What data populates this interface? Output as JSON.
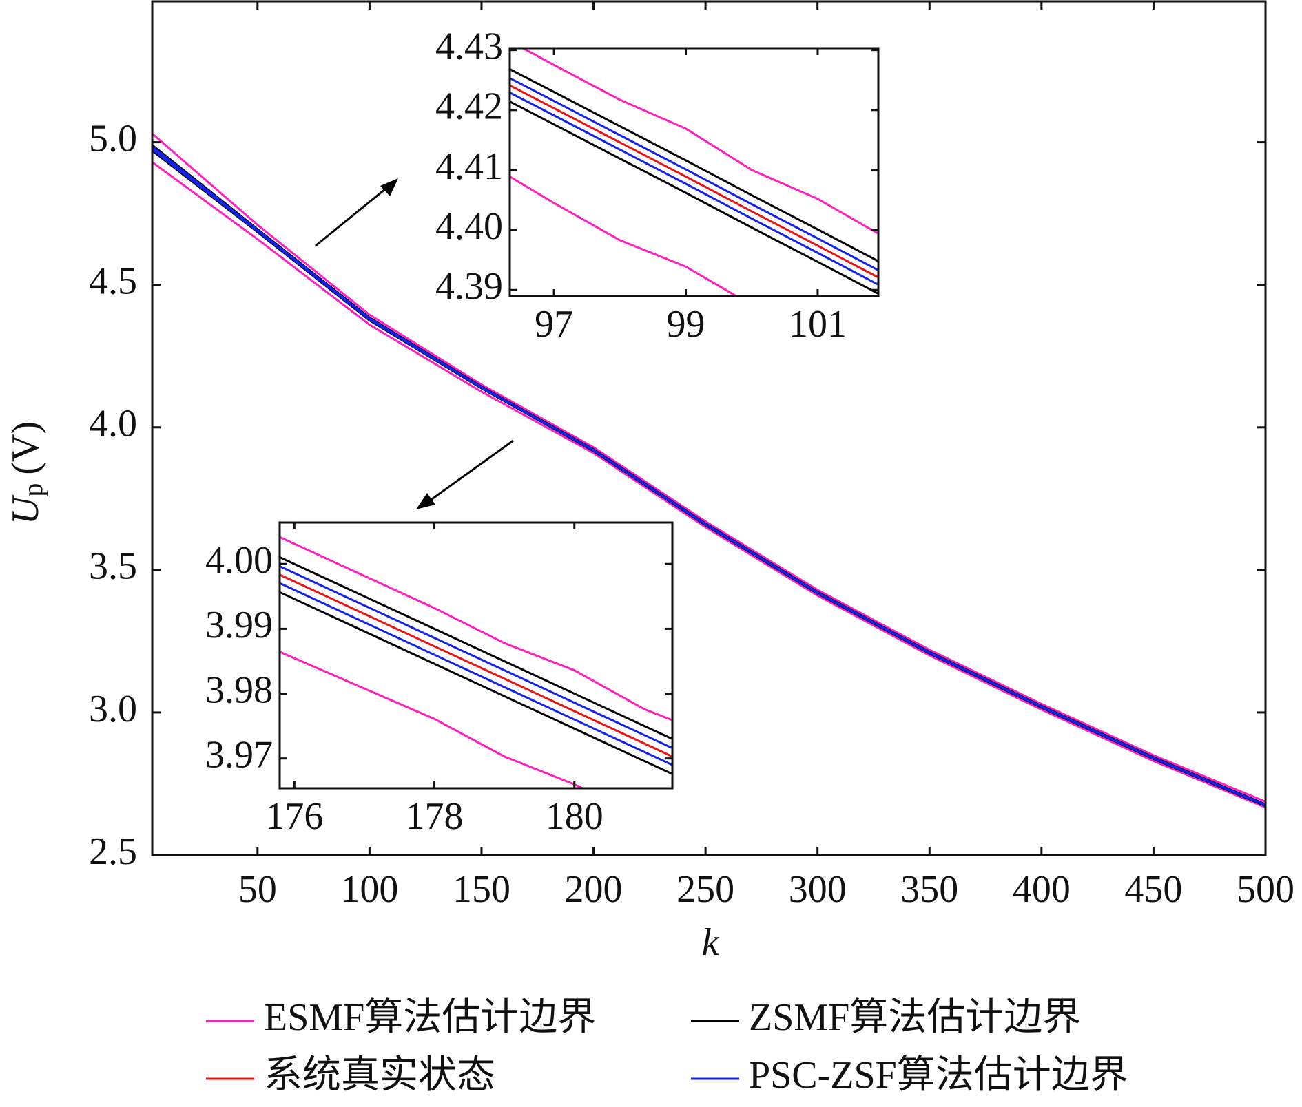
{
  "chart_data": [
    {
      "type": "line",
      "xlabel": "k",
      "ylabel_symbol": "U",
      "ylabel_subscript": "p",
      "ylabel_unit": "(V)",
      "x": [
        3,
        50,
        100,
        150,
        200,
        250,
        300,
        350,
        400,
        450,
        500
      ],
      "xlim": [
        3,
        500
      ],
      "xticks": [
        50,
        100,
        150,
        200,
        250,
        300,
        350,
        400,
        450,
        500
      ],
      "ylim": [
        2.5,
        5.494
      ],
      "yticks": [
        {
          "value": 2.5,
          "label": "2.5"
        },
        {
          "value": 3.0,
          "label": "3.0"
        },
        {
          "value": 3.5,
          "label": "3.5"
        },
        {
          "value": 4.0,
          "label": "4.0"
        },
        {
          "value": 4.5,
          "label": "4.5"
        },
        {
          "value": 5.0,
          "label": "5.0"
        }
      ],
      "grid": false,
      "series": [
        {
          "name": "ESMF算法估计边界",
          "color": "#ff1fbf",
          "upper": [
            5.03,
            4.71,
            4.395,
            4.15,
            3.93,
            3.67,
            3.43,
            3.22,
            3.03,
            2.85,
            2.687
          ],
          "lower": [
            4.93,
            4.66,
            4.36,
            4.125,
            3.91,
            3.65,
            3.41,
            3.2,
            3.01,
            2.83,
            2.667
          ]
        },
        {
          "name": "ZSMF算法估计边界",
          "color": "#000000",
          "upper": [
            4.99,
            4.695,
            4.385,
            4.143,
            3.923,
            3.663,
            3.423,
            3.213,
            3.023,
            2.843,
            2.678
          ],
          "lower": [
            4.97,
            4.685,
            4.375,
            4.137,
            3.917,
            3.657,
            3.417,
            3.207,
            3.017,
            2.837,
            2.672
          ]
        },
        {
          "name": "系统真实状态",
          "color": "#ee1111",
          "values": [
            4.98,
            4.69,
            4.38,
            4.14,
            3.92,
            3.66,
            3.42,
            3.21,
            3.02,
            2.84,
            2.675
          ]
        },
        {
          "name": "PSC-ZSF算法估计边界",
          "color": "#1122ee",
          "upper": [
            4.985,
            4.692,
            4.382,
            4.141,
            3.921,
            3.661,
            3.421,
            3.211,
            3.021,
            2.841,
            2.676
          ],
          "lower": [
            4.975,
            4.688,
            4.378,
            4.139,
            3.919,
            3.659,
            3.419,
            3.209,
            3.019,
            2.839,
            2.674
          ]
        }
      ]
    },
    {
      "type": "line",
      "x": [
        96.33,
        97,
        98,
        99,
        100,
        101,
        101.92
      ],
      "xlim": [
        96.33,
        101.92
      ],
      "xticks": [
        97,
        99,
        101
      ],
      "ylim": [
        4.389,
        4.4303
      ],
      "yticks": [
        4.39,
        {
          "value": 4.4,
          "label": "4.40"
        },
        4.41,
        4.42,
        4.43
      ],
      "series": [
        {
          "color": "#ff1fbf",
          "upper": [
            4.4315,
            4.4275,
            4.4217,
            4.4169,
            4.41,
            4.4052,
            4.3994
          ],
          "lower": [
            4.4089,
            4.4045,
            4.3983,
            4.3939,
            4.3875,
            4.382,
            4.377
          ]
        },
        {
          "color": "#000000",
          "upper": [
            4.4268,
            4.423,
            4.4173,
            4.4116,
            4.4058,
            4.4001,
            4.3948
          ],
          "lower": [
            4.4214,
            4.4176,
            4.4119,
            4.4062,
            4.4004,
            4.3947,
            4.3894
          ]
        },
        {
          "color": "#ee1111",
          "values": [
            4.4241,
            4.4203,
            4.4146,
            4.4089,
            4.4031,
            4.3974,
            4.3921
          ]
        },
        {
          "color": "#1122ee",
          "upper": [
            4.4253,
            4.4215,
            4.4158,
            4.4101,
            4.4043,
            4.3986,
            4.3933
          ],
          "lower": [
            4.4229,
            4.4191,
            4.4134,
            4.4077,
            4.4019,
            4.3962,
            4.3909
          ]
        }
      ]
    },
    {
      "type": "line",
      "x": [
        175.8,
        178,
        179,
        180,
        181,
        181.4
      ],
      "xlim": [
        175.79,
        181.4
      ],
      "xticks": [
        176,
        178,
        180
      ],
      "ylim": [
        3.9654,
        4.0064
      ],
      "yticks": [
        3.97,
        3.98,
        3.99,
        {
          "value": 4.0,
          "label": "4.00"
        }
      ],
      "series": [
        {
          "color": "#ff1fbf",
          "upper": [
            4.0041,
            3.9932,
            3.9878,
            3.9836,
            3.9776,
            3.9759
          ],
          "lower": [
            3.9864,
            3.9761,
            3.9703,
            3.966,
            3.961,
            3.959
          ]
        },
        {
          "color": "#000000",
          "upper": [
            4.001,
            3.99,
            3.985,
            3.98,
            3.975,
            3.973
          ],
          "lower": [
            3.9956,
            3.9846,
            3.9796,
            3.9746,
            3.9696,
            3.9676
          ]
        },
        {
          "color": "#ee1111",
          "values": [
            3.9983,
            3.9873,
            3.9823,
            3.9773,
            3.9723,
            3.9703
          ]
        },
        {
          "color": "#1122ee",
          "upper": [
            3.9996,
            3.9886,
            3.9836,
            3.9786,
            3.9736,
            3.9716
          ],
          "lower": [
            3.997,
            3.986,
            3.981,
            3.976,
            3.971,
            3.969
          ]
        }
      ]
    }
  ]
}
